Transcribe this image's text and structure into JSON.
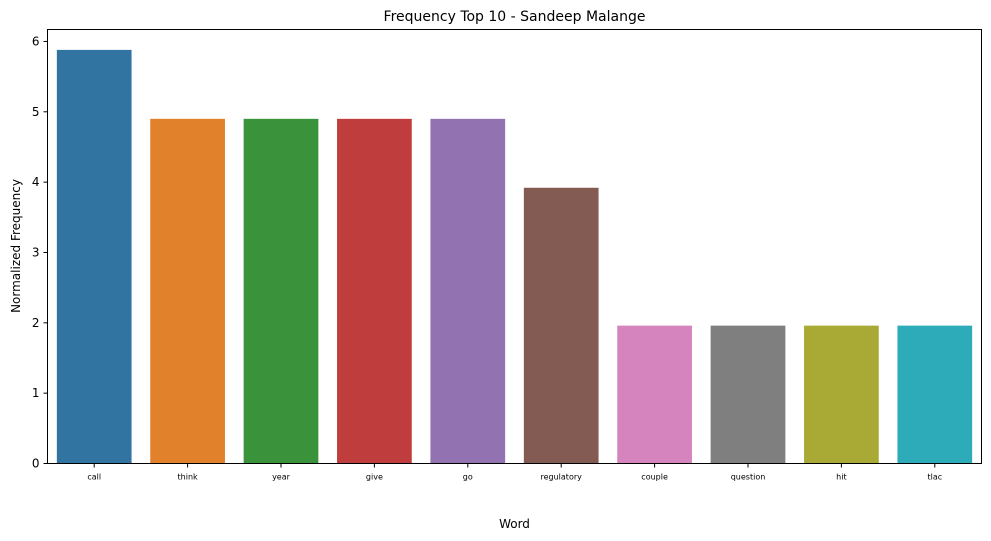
{
  "chart_data": {
    "type": "bar",
    "title": "Frequency Top 10 - Sandeep Malange",
    "xlabel": "Word",
    "ylabel": "Normalized Frequency",
    "categories": [
      "call",
      "think",
      "year",
      "give",
      "go",
      "regulatory",
      "couple",
      "question",
      "hit",
      "tlac"
    ],
    "values": [
      5.88,
      4.9,
      4.9,
      4.9,
      4.9,
      3.92,
      1.96,
      1.96,
      1.96,
      1.96
    ],
    "colors": [
      "#3274a1",
      "#e1812c",
      "#3a923a",
      "#c03d3e",
      "#9372b2",
      "#845b53",
      "#d684bd",
      "#7f7f7f",
      "#a9aa35",
      "#2eabb8"
    ],
    "yticks": [
      0,
      1,
      2,
      3,
      4,
      5,
      6
    ],
    "ylim": [
      0,
      6.17
    ],
    "grid": false,
    "legend": "none"
  }
}
